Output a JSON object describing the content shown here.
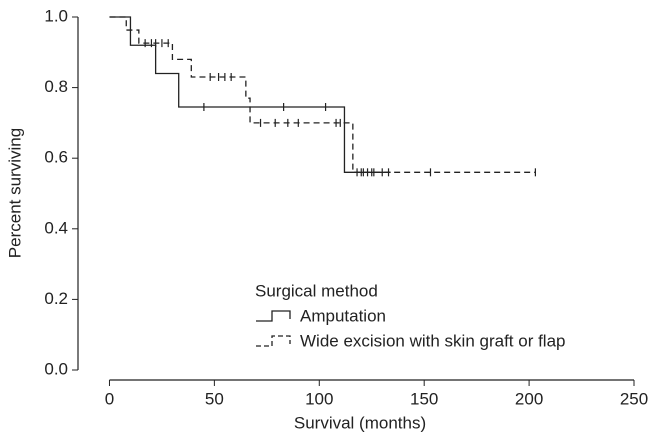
{
  "chart_data": {
    "type": "step",
    "x_label": "Survival (months)",
    "y_label": "Percent surviving",
    "legend_title": "Surgical method",
    "xlim": [
      -15,
      250
    ],
    "xticks": [
      0,
      50,
      100,
      150,
      200,
      250
    ],
    "ylim": [
      0,
      1
    ],
    "yticks": [
      {
        "value": 0,
        "label": "0.0"
      },
      0.2,
      0.4,
      0.6,
      0.8,
      {
        "value": 1,
        "label": "1.0"
      }
    ],
    "legend": "lower right",
    "series": [
      {
        "name": "Amputation",
        "color": "#222222",
        "dashed": false,
        "x": [
          0,
          10,
          22,
          33,
          112,
          134
        ],
        "values": [
          1,
          0.92,
          0.84,
          0.745,
          0.56,
          0.56
        ],
        "censored_x": [
          45,
          83,
          103,
          118,
          121,
          123,
          126,
          133
        ],
        "censored_values": [
          0.745,
          0.745,
          0.745,
          0.56,
          0.56,
          0.56,
          0.56,
          0.56
        ]
      },
      {
        "name": "Wide excision with skin graft or flap",
        "color": "#222222",
        "dashed": true,
        "x": [
          0,
          8,
          14,
          30,
          39,
          65,
          67,
          116,
          203
        ],
        "values": [
          1,
          0.963,
          0.926,
          0.88,
          0.83,
          0.77,
          0.7,
          0.56,
          0.56
        ],
        "censored_x": [
          17,
          20,
          22,
          25,
          28,
          48,
          52,
          55,
          58,
          72,
          79,
          85,
          90,
          108,
          110,
          120,
          125,
          130,
          153,
          203
        ],
        "censored_values": [
          0.926,
          0.926,
          0.926,
          0.926,
          0.926,
          0.83,
          0.83,
          0.83,
          0.83,
          0.7,
          0.7,
          0.7,
          0.7,
          0.7,
          0.7,
          0.56,
          0.56,
          0.56,
          0.56,
          0.56
        ]
      }
    ]
  }
}
